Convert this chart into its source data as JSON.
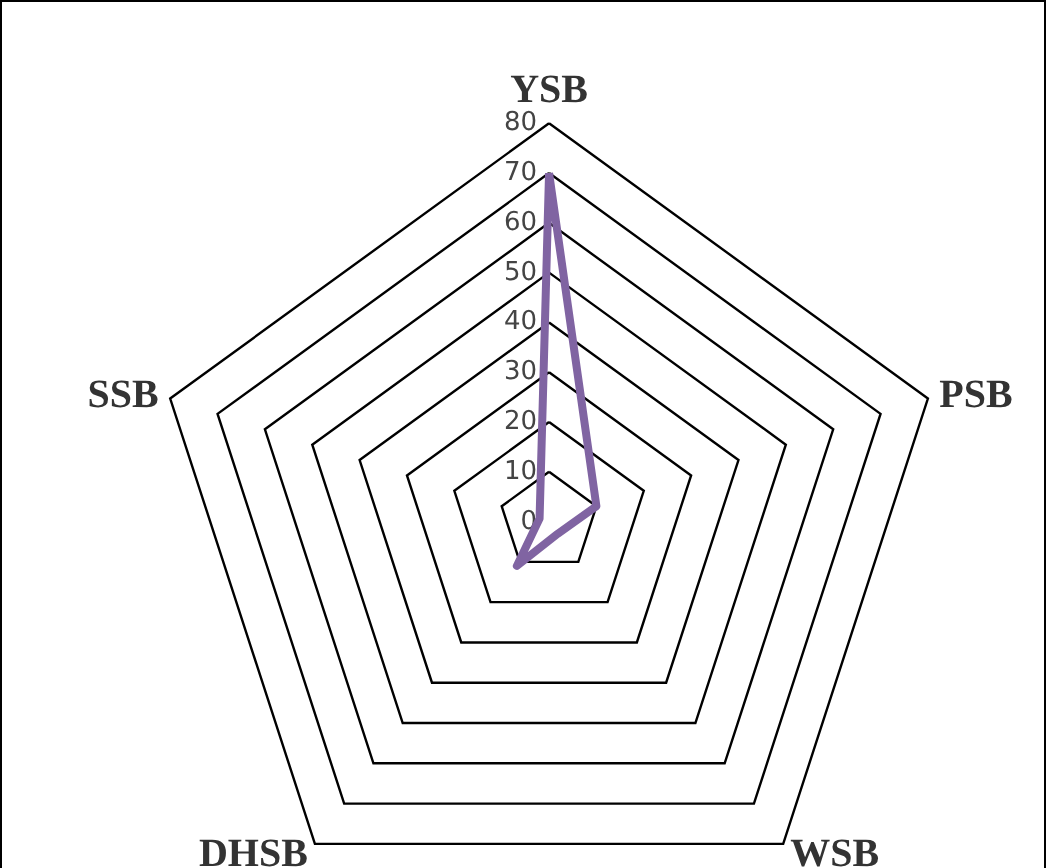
{
  "chart_data": {
    "type": "radar",
    "categories": [
      "YSB",
      "PSB",
      "WSB",
      "DHSB",
      "SSB"
    ],
    "series": [
      {
        "color": "#8064a2",
        "values": [
          70,
          10,
          3,
          11,
          2
        ]
      }
    ],
    "ylim": [
      0,
      80
    ],
    "yticks": [
      0,
      10,
      20,
      30,
      40,
      50,
      60,
      70,
      80
    ],
    "grid": true,
    "marker": "none",
    "line_style": "solid"
  }
}
